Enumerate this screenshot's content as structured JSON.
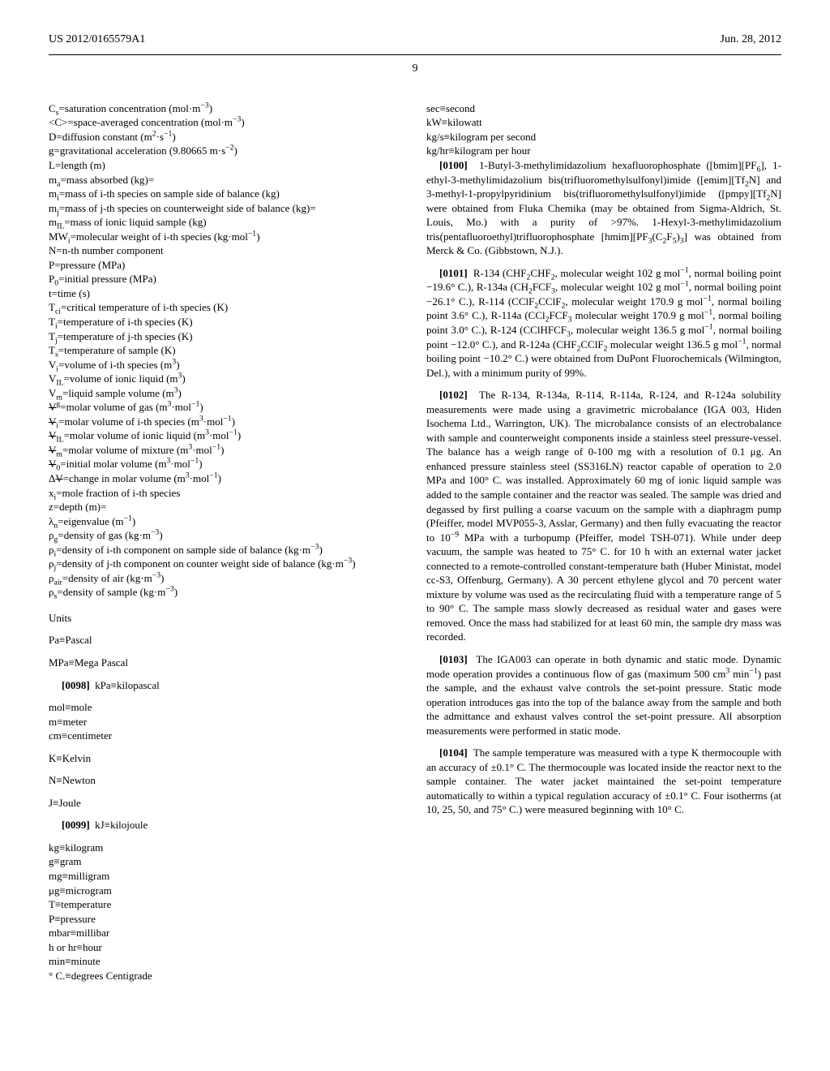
{
  "header": {
    "pub": "US 2012/0165579A1",
    "date": "Jun. 28, 2012",
    "page": "9"
  },
  "defs1": [
    "C<sub>s</sub>=saturation concentration (mol·m<sup>−3</sup>)",
    "&lt;C&gt;=space-averaged concentration (mol·m<sup>−3</sup>)",
    "D=diffusion constant (m<sup>2</sup>·s<sup>−1</sup>)",
    "g=gravitational acceleration (9.80665 m·s<sup>−2</sup>)",
    "L=length (m)",
    "m<sub>a</sub>=mass absorbed (kg)=",
    "m<sub>i</sub>=mass of i-th species on sample side of balance (kg)",
    "m<sub>j</sub>=mass of j-th species on counterweight side of balance (kg)=",
    "m<sub>IL</sub>=mass of ionic liquid sample (kg)",
    "MW<sub>i</sub>=molecular weight of i-th species (kg·mol<sup>−1</sup>)",
    "N=n-th number component",
    "P=pressure (MPa)",
    "P<sub>0</sub>=initial pressure (MPa)",
    "t=time (s)",
    "T<sub>ci</sub>=critical temperature of i-th species (K)",
    "T<sub>i</sub>=temperature of i-th species (K)",
    "T<sub>j</sub>=temperature of j-th species (K)",
    "T<sub>s</sub>=temperature of sample (K)",
    "V<sub>i</sub>=volume of i-th species (m<sup>3</sup>)",
    "V<sub>IL</sub>=volume of ionic liquid (m<sup>3</sup>)",
    "V<sub>m</sub>=liquid sample volume (m<sup>3</sup>)",
    "<span class='ov'>V</span><sup>g</sup>=molar volume of gas (m<sup>3</sup>·mol<sup>−1</sup>)",
    "<span class='ov'>V</span><sub>i</sub>=molar volume of i-th species (m<sup>3</sup>·mol<sup>−1</sup>)",
    "<span class='ov'>V</span><sub>IL</sub>=molar volume of ionic liquid (m<sup>3</sup>·mol<sup>−1</sup>)",
    "<span class='ov'>V</span><sub>m</sub>=molar volume of mixture (m<sup>3</sup>·mol<sup>−1</sup>)",
    "<span class='ov'>V</span><sub>0</sub>=initial molar volume (m<sup>3</sup>·mol<sup>−1</sup>)",
    "Δ<span class='ov'>V</span>=change in molar volume (m<sup>3</sup>·mol<sup>−1</sup>)",
    "x<sub>i</sub>=mole fraction of i-th species",
    "z=depth (m)=",
    "λ<sub>n</sub>=eigenvalue (m<sup>−1</sup>)",
    "ρ<sub>g</sub>=density of gas (kg·m<sup>−3</sup>)",
    "ρ<sub>i</sub>=density of i-th component on sample side of balance (kg·m<sup>−3</sup>)",
    "ρ<sub>j</sub>=density of j-th component on counter weight side of balance (kg·m<sup>−3</sup>)",
    "ρ<sub>air</sub>=density of air (kg·m<sup>−3</sup>)",
    "ρ<sub>s</sub>=density of sample (kg·m<sup>−3</sup>)"
  ],
  "unitsHead": "Units",
  "unitBlocks": [
    [
      "Pa≡Pascal"
    ],
    [
      "MPa≡Mega Pascal"
    ]
  ],
  "para98": {
    "num": "[0098]",
    "body": "kPa≡kilopascal"
  },
  "unitList1": [
    "mol≡mole",
    "m≡meter",
    "cm≡centimeter"
  ],
  "unitBlocks2": [
    [
      "K≡Kelvin"
    ],
    [
      "N≡Newton"
    ],
    [
      "J≡Joule"
    ]
  ],
  "para99": {
    "num": "[0099]",
    "body": "kJ≡kilojoule"
  },
  "unitList2": [
    "kg≡kilogram",
    "g≡gram",
    "mg≡milligram",
    "μg≡microgram",
    "T≡temperature",
    "P≡pressure",
    "mbar≡millibar",
    "h or hr≡hour",
    "min≡minute",
    "° C.≡degrees Centigrade"
  ],
  "unitList3": [
    "sec≡second",
    "kW≡kilowatt",
    "kg/s≡kilogram per second",
    "kg/hr≡kilogram per hour"
  ],
  "paras": {
    "100": "1-Butyl-3-methylimidazolium hexafluorophosphate ([bmim][PF<sub>6</sub>], 1-ethyl-3-methylimidazolium bis(trifluoromethylsulfonyl)imide ([emim][Tf<sub>2</sub>N] and 3-methyl-1-propylpyridinium bis(trifluoromethylsulfonyl)imide ([pmpy][Tf<sub>2</sub>N] were obtained from Fluka Chemika (may be obtained from Sigma-Aldrich, St. Louis, Mo.) with a purity of &gt;97%. 1-Hexyl-3-methylimidazolium tris(pentafluoroethyl)trifluorophosphate [hmim][PF<sub>3</sub>(C<sub>2</sub>F<sub>5</sub>)<sub>3</sub>] was obtained from Merck &amp; Co. (Gibbstown, N.J.).",
    "101": "R-134 (CHF<sub>2</sub>CHF<sub>2</sub>, molecular weight 102 g mol<sup>−1</sup>, normal boiling point −19.6° C.), R-134a (CH<sub>2</sub>FCF<sub>3</sub>, molecular weight 102 g mol<sup>−1</sup>, normal boiling point −26.1° C.), R-114 (CClF<sub>2</sub>CClF<sub>2</sub>, molecular weight 170.9 g mol<sup>−1</sup>, normal boiling point 3.6° C.), R-114a (CCl<sub>2</sub>FCF<sub>3</sub> molecular weight 170.9 g mol<sup>−1</sup>, normal boiling point 3.0° C.), R-124 (CClHFCF<sub>3</sub>, molecular weight 136.5 g mol<sup>−1</sup>, normal boiling point −12.0° C.), and R-124a (CHF<sub>2</sub>CClF<sub>2</sub> molecular weight 136.5 g mol<sup>−1</sup>, normal boiling point −10.2° C.) were obtained from DuPont Fluorochemicals (Wilmington, Del.), with a minimum purity of 99%.",
    "102": "The R-134, R-134a, R-114, R-114a, R-124, and R-124a solubility measurements were made using a gravimetric microbalance (IGA 003, Hiden Isochema Ltd., Warrington, UK). The microbalance consists of an electrobalance with sample and counterweight components inside a stainless steel pressure-vessel. The balance has a weigh range of 0-100 mg with a resolution of 0.1 μg. An enhanced pressure stainless steel (SS316LN) reactor capable of operation to 2.0 MPa and 100° C. was installed. Approximately 60 mg of ionic liquid sample was added to the sample container and the reactor was sealed. The sample was dried and degassed by first pulling a coarse vacuum on the sample with a diaphragm pump (Pfeiffer, model MVP055-3, Asslar, Germany) and then fully evacuating the reactor to 10<sup>−9</sup> MPa with a turbopump (Pfeiffer, model TSH-071). While under deep vacuum, the sample was heated to 75° C. for 10 h with an external water jacket connected to a remote-controlled constant-temperature bath (Huber Ministat, model cc-S3, Offenburg, Germany). A 30 percent ethylene glycol and 70 percent water mixture by volume was used as the recirculating fluid with a temperature range of 5 to 90° C. The sample mass slowly decreased as residual water and gases were removed. Once the mass had stabilized for at least 60 min, the sample dry mass was recorded.",
    "103": "The IGA003 can operate in both dynamic and static mode. Dynamic mode operation provides a continuous flow of gas (maximum 500 cm<sup>3</sup> min<sup>−1</sup>) past the sample, and the exhaust valve controls the set-point pressure. Static mode operation introduces gas into the top of the balance away from the sample and both the admittance and exhaust valves control the set-point pressure. All absorption measurements were performed in static mode.",
    "104": "The sample temperature was measured with a type K thermocouple with an accuracy of ±0.1° C. The thermocouple was located inside the reactor next to the sample container. The water jacket maintained the set-point temperature automatically to within a typical regulation accuracy of ±0.1° C. Four isotherms (at 10, 25, 50, and 75° C.) were measured beginning with 10° C."
  }
}
